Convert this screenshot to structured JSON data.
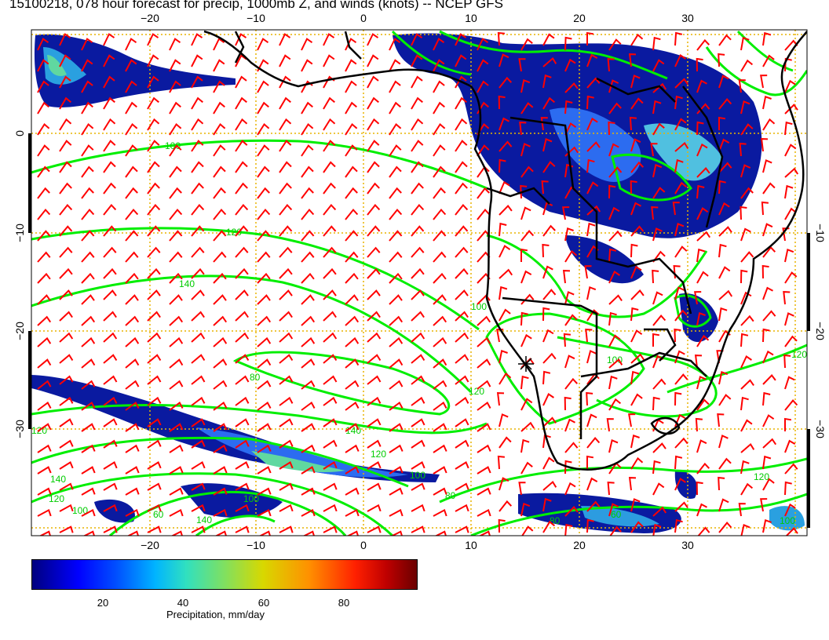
{
  "title": "15100218, 078 hour forecast for precip, 1000mb Z, and winds (knots) -- NCEP GFS",
  "map": {
    "lon_labels": [
      "−20",
      "−10",
      "0",
      "10",
      "20",
      "30"
    ],
    "lat_labels": [
      "0",
      "−10",
      "−20",
      "−30"
    ],
    "right_lat_labels": [
      "−10",
      "−20",
      "−30"
    ],
    "contour_labels": [
      "100",
      "120",
      "140",
      "80",
      "100",
      "120",
      "140",
      "120",
      "100",
      "80",
      "60",
      "100",
      "120",
      "140",
      "120",
      "100",
      "120",
      "140",
      "100",
      "80",
      "60",
      "100",
      "120"
    ],
    "colors": {
      "contours": "#00ee00",
      "wind_barbs": "#ff0000",
      "coastline": "#000000",
      "grid": "#e8b400"
    }
  },
  "colorbar": {
    "ticks": [
      "20",
      "40",
      "60",
      "80"
    ],
    "label": "Precipitation, mm/day"
  }
}
